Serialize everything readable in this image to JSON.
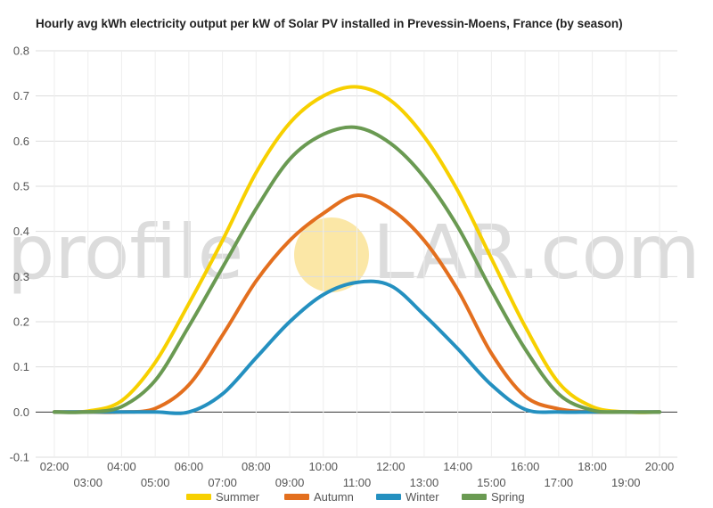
{
  "watermark": {
    "text_before": "profile",
    "text_after": "LAR.com",
    "sun_color": "#fbe7a6"
  },
  "chart_data": {
    "type": "line",
    "title": "Hourly avg kWh electricity output per kW of Solar PV installed in Prevessin-Moens, France (by season)",
    "xlabel": "",
    "ylabel": "",
    "x": [
      "02:00",
      "03:00",
      "04:00",
      "05:00",
      "06:00",
      "07:00",
      "08:00",
      "09:00",
      "10:00",
      "11:00",
      "12:00",
      "13:00",
      "14:00",
      "15:00",
      "16:00",
      "17:00",
      "18:00",
      "19:00",
      "20:00"
    ],
    "ylim": [
      -0.1,
      0.8
    ],
    "yticks": [
      "0.8",
      "0.7",
      "0.6",
      "0.5",
      "0.4",
      "0.3",
      "0.2",
      "0.1",
      "0.0",
      "-0.1"
    ],
    "grid": true,
    "legend_position": "bottom",
    "series": [
      {
        "name": "Summer",
        "color": "#f7d000",
        "values": [
          0.0,
          0.002,
          0.025,
          0.11,
          0.24,
          0.38,
          0.53,
          0.64,
          0.7,
          0.72,
          0.69,
          0.61,
          0.49,
          0.34,
          0.19,
          0.065,
          0.012,
          0.0,
          0.0
        ]
      },
      {
        "name": "Autumn",
        "color": "#e36f1e",
        "values": [
          0.0,
          0.0,
          0.0,
          0.008,
          0.06,
          0.17,
          0.29,
          0.38,
          0.44,
          0.48,
          0.45,
          0.38,
          0.27,
          0.13,
          0.035,
          0.007,
          0.0,
          0.0,
          0.0
        ]
      },
      {
        "name": "Winter",
        "color": "#2490c0",
        "values": [
          0.0,
          0.0,
          0.0,
          0.0,
          0.0,
          0.04,
          0.12,
          0.2,
          0.26,
          0.287,
          0.28,
          0.215,
          0.14,
          0.06,
          0.006,
          0.0,
          0.0,
          0.0,
          0.0
        ]
      },
      {
        "name": "Spring",
        "color": "#6a9a52",
        "values": [
          0.0,
          0.0,
          0.012,
          0.07,
          0.19,
          0.32,
          0.45,
          0.56,
          0.615,
          0.63,
          0.595,
          0.52,
          0.41,
          0.27,
          0.14,
          0.04,
          0.004,
          0.0,
          0.0
        ]
      }
    ]
  }
}
